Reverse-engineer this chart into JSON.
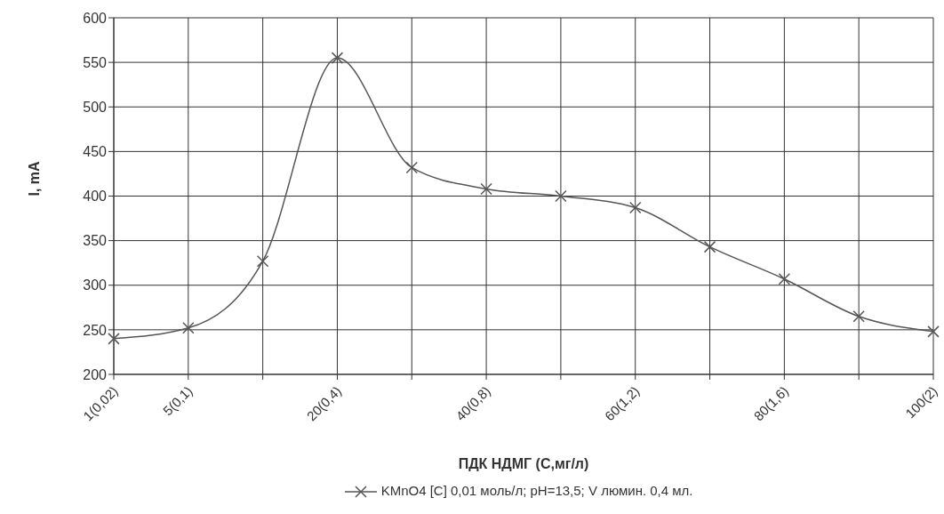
{
  "chart_data": {
    "type": "line",
    "xlabel": "ПДК НДМГ (С,мг/л)",
    "ylabel": "I, mA",
    "categories": [
      "1(0,02)",
      "5(0,1)",
      null,
      "20(0,4)",
      null,
      "40(0,8)",
      null,
      "60(1,2)",
      null,
      "80(1,6)",
      null,
      "100(2)"
    ],
    "series": [
      {
        "name": "KMnO4 [C] 0,01 моль/л; pH=13,5; V люмин. 0,4 мл.",
        "color": "#555555",
        "values": [
          240,
          252,
          327,
          555,
          432,
          408,
          400,
          387,
          343,
          307,
          265,
          248
        ]
      }
    ],
    "ylim": [
      200,
      600
    ],
    "yticks": [
      200,
      250,
      300,
      350,
      400,
      450,
      500,
      550,
      600
    ],
    "grid": true,
    "legend": "bottom",
    "marker": "cross",
    "line_style": "solid"
  }
}
